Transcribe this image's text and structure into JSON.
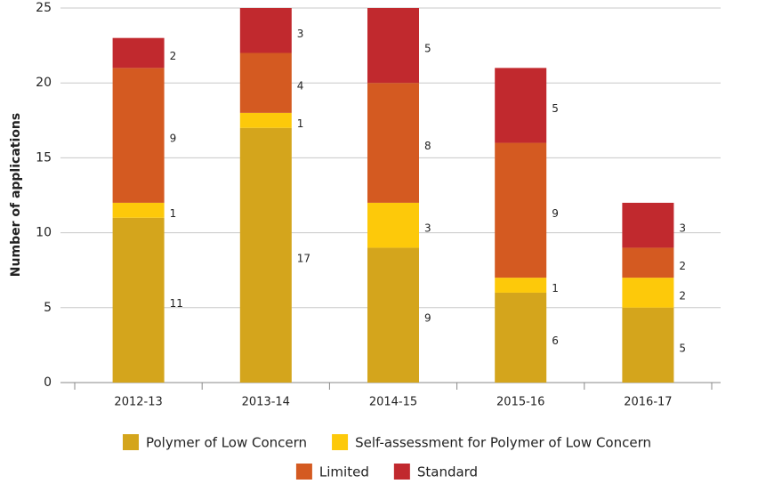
{
  "chart_data": {
    "type": "stacked-bar",
    "y_label": "Number of applications",
    "categories": [
      "2012-13",
      "2013-14",
      "2014-15",
      "2015-16",
      "2016-17"
    ],
    "series": [
      {
        "name": "Polymer of Low Concern",
        "color": "#d4a51c",
        "values": [
          11,
          17,
          9,
          6,
          5
        ]
      },
      {
        "name": "Self-assessment for Polymer of Low Concern",
        "color": "#fdc90a",
        "values": [
          1,
          1,
          3,
          1,
          2
        ]
      },
      {
        "name": "Limited",
        "color": "#d45a21",
        "values": [
          9,
          4,
          8,
          9,
          2
        ]
      },
      {
        "name": "Standard",
        "color": "#c1292e",
        "values": [
          2,
          3,
          5,
          5,
          3
        ]
      }
    ],
    "ylim": [
      0,
      25
    ],
    "yticks": [
      0,
      5,
      10,
      15,
      20,
      25
    ],
    "grid": true,
    "legend": "bottom"
  }
}
